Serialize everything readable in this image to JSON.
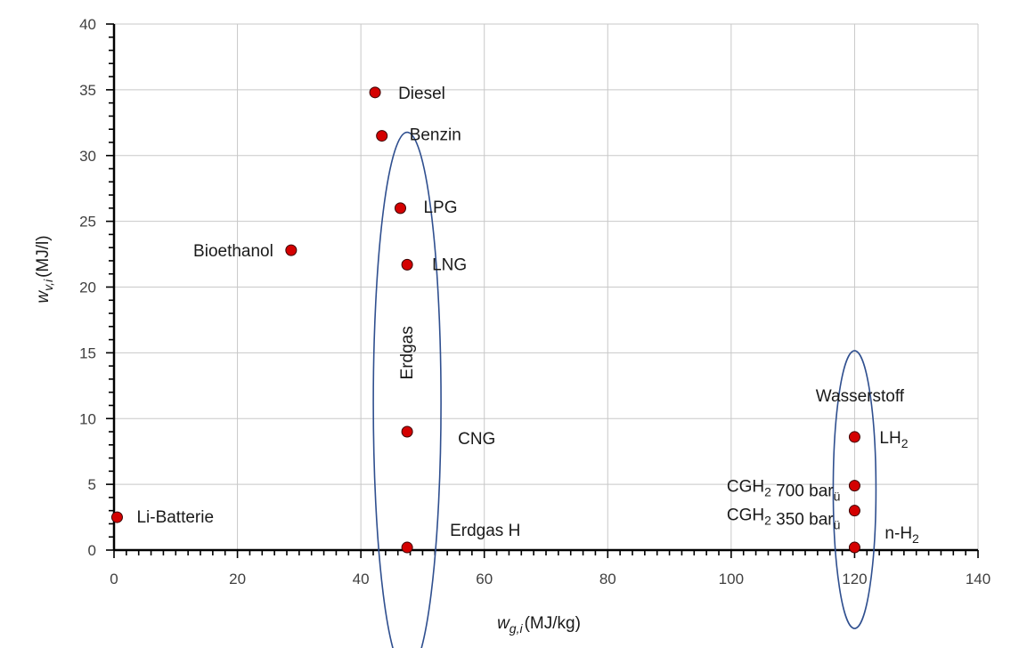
{
  "chart_data": {
    "type": "scatter",
    "xlim": [
      0,
      140
    ],
    "ylim": [
      0,
      40
    ],
    "x_ticks": [
      0,
      20,
      40,
      60,
      80,
      100,
      120,
      140
    ],
    "y_ticks": [
      0,
      5,
      10,
      15,
      20,
      25,
      30,
      35,
      40
    ],
    "xlabel": {
      "symbol": "w",
      "sub": "g,i",
      "unit": "(MJ/kg)"
    },
    "ylabel": {
      "symbol": "w",
      "sub": "v,i",
      "unit": "(MJ/l)"
    },
    "grid": true,
    "marker_color": "#d40000",
    "group_color": "#2f4f8f",
    "points": [
      {
        "label": "Li-Batterie",
        "x": 0.5,
        "y": 2.5
      },
      {
        "label": "Bioethanol",
        "x": 28.7,
        "y": 22.8
      },
      {
        "label": "Diesel",
        "x": 42.3,
        "y": 34.8
      },
      {
        "label": "Benzin",
        "x": 43.4,
        "y": 31.5
      },
      {
        "label": "LPG",
        "x": 46.4,
        "y": 26.0
      },
      {
        "label": "LNG",
        "x": 47.5,
        "y": 21.7
      },
      {
        "label": "CNG",
        "x": 47.5,
        "y": 9.0
      },
      {
        "label": "Erdgas H",
        "x": 47.5,
        "y": 0.2
      },
      {
        "label": "LH",
        "label_sub": "2",
        "x": 120.0,
        "y": 8.6
      },
      {
        "label": "CGH",
        "label_sub": "2",
        "label_suffix": " 700 bar",
        "label_suffix_sub": "ü",
        "x": 120.0,
        "y": 4.9
      },
      {
        "label": "CGH",
        "label_sub": "2",
        "label_suffix": " 350 bar",
        "label_suffix_sub": "ü",
        "x": 120.0,
        "y": 3.0
      },
      {
        "label": "n-H",
        "label_sub": "2",
        "x": 120.0,
        "y": 0.2
      }
    ],
    "groups": [
      {
        "label": "Erdgas"
      },
      {
        "label": "Wasserstoff"
      }
    ]
  }
}
